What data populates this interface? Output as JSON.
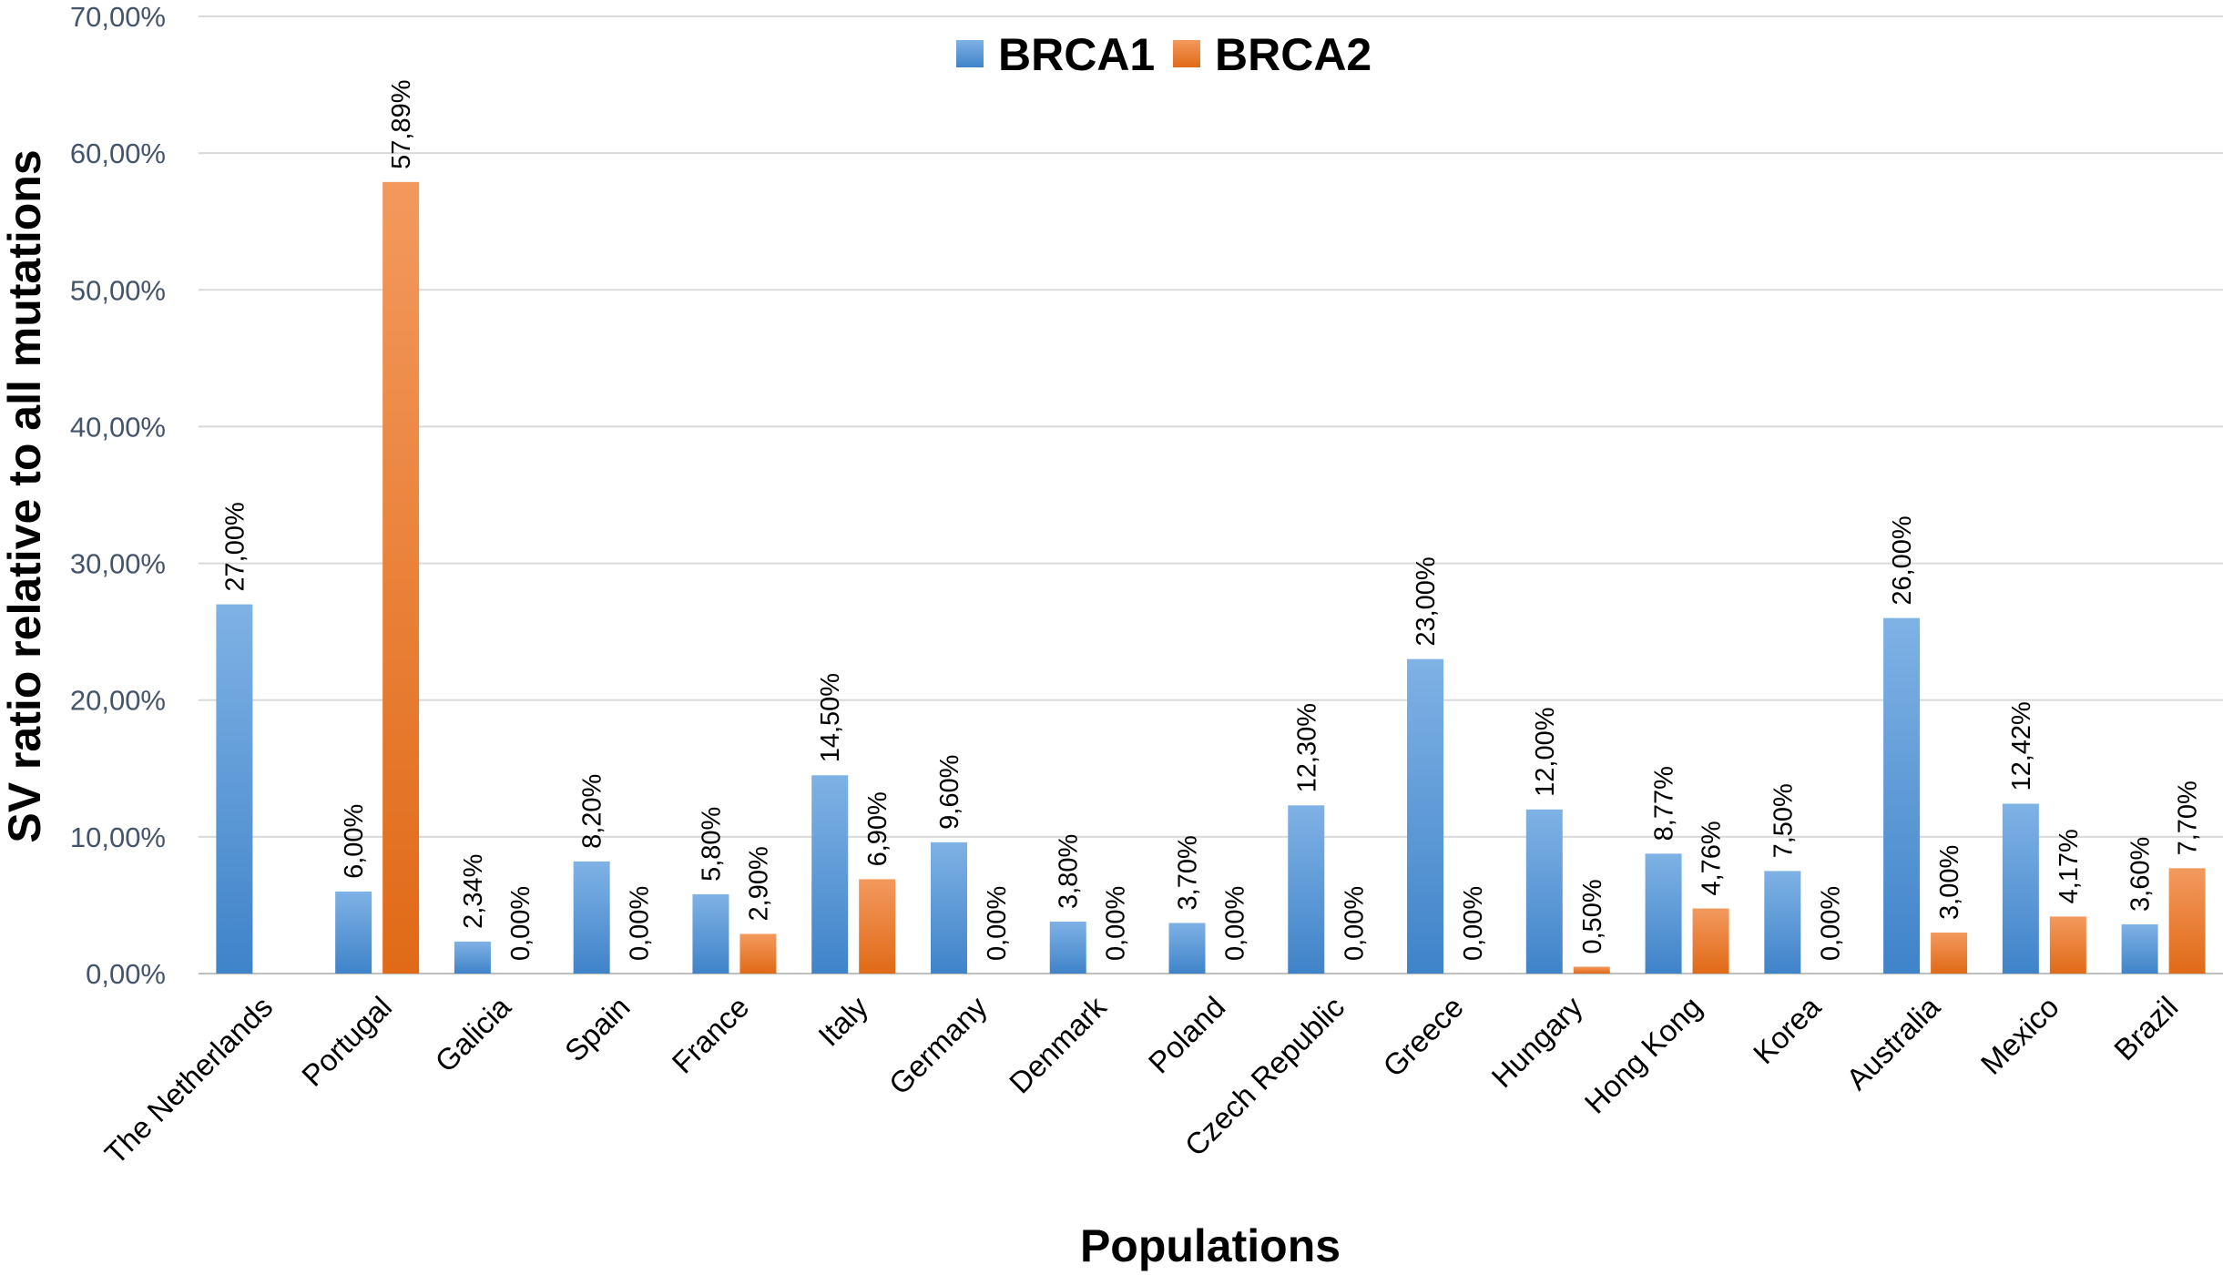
{
  "chart_data": {
    "type": "bar",
    "title": "",
    "xlabel": "Populations",
    "ylabel": "SV ratio relative to all mutations",
    "ylim": [
      0,
      70
    ],
    "yticks": [
      "0,00%",
      "10,00%",
      "20,00%",
      "30,00%",
      "40,00%",
      "50,00%",
      "60,00%",
      "70,00%"
    ],
    "grid": true,
    "legend_position": "top-center",
    "categories": [
      "The Netherlands",
      "Portugal",
      "Galicia",
      "Spain",
      "France",
      "Italy",
      "Germany",
      "Denmark",
      "Poland",
      "Czech Republic",
      "Greece",
      "Hungary",
      "Hong Kong",
      "Korea",
      "Australia",
      "Mexico",
      "Brazil"
    ],
    "series": [
      {
        "name": "BRCA1",
        "color": "#5B9BD5",
        "values": [
          27.0,
          6.0,
          2.34,
          8.2,
          5.8,
          14.5,
          9.6,
          3.8,
          3.7,
          12.3,
          23.0,
          12.0,
          8.77,
          7.5,
          26.0,
          12.42,
          3.6
        ],
        "labels": [
          "27,00%",
          "6,00%",
          "2,34%",
          "8,20%",
          "5,80%",
          "14,50%",
          "9,60%",
          "3,80%",
          "3,70%",
          "12,30%",
          "23,00%",
          "12,00%",
          "8,77%",
          "7,50%",
          "26,00%",
          "12,42%",
          "3,60%"
        ]
      },
      {
        "name": "BRCA2",
        "color": "#ED7D31",
        "values": [
          null,
          57.89,
          0.0,
          0.0,
          2.9,
          6.9,
          0.0,
          0.0,
          0.0,
          0.0,
          0.0,
          0.5,
          4.76,
          0.0,
          3.0,
          4.17,
          7.7
        ],
        "labels": [
          null,
          "57,89%",
          "0,00%",
          "0,00%",
          "2,90%",
          "6,90%",
          "0,00%",
          "0,00%",
          "0,00%",
          "0,00%",
          "0,00%",
          "0,50%",
          "4,76%",
          "0,00%",
          "3,00%",
          "4,17%",
          "7,70%"
        ]
      }
    ]
  }
}
